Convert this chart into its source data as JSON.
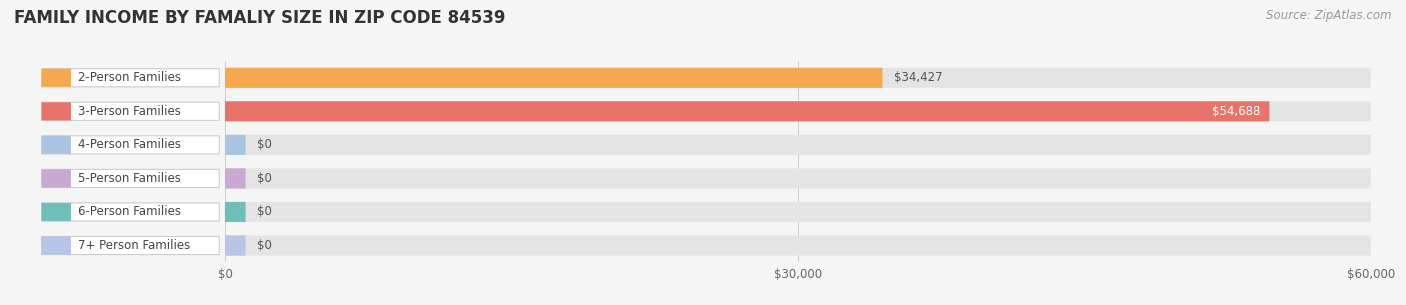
{
  "title": "FAMILY INCOME BY FAMALIY SIZE IN ZIP CODE 84539",
  "source": "Source: ZipAtlas.com",
  "categories": [
    "2-Person Families",
    "3-Person Families",
    "4-Person Families",
    "5-Person Families",
    "6-Person Families",
    "7+ Person Families"
  ],
  "values": [
    34427,
    54688,
    0,
    0,
    0,
    0
  ],
  "bar_colors": [
    "#f5a94e",
    "#e8736a",
    "#a8c4e0",
    "#c9a8d4",
    "#6dbfb8",
    "#b8c4e8"
  ],
  "value_label_colors": [
    "#555555",
    "#ffffff",
    "#555555",
    "#555555",
    "#555555",
    "#555555"
  ],
  "value_labels": [
    "$34,427",
    "$54,688",
    "$0",
    "$0",
    "$0",
    "$0"
  ],
  "xlim": [
    0,
    60000
  ],
  "xticks": [
    0,
    30000,
    60000
  ],
  "xtick_labels": [
    "$0",
    "$30,000",
    "$60,000"
  ],
  "background_color": "#f5f5f5",
  "bar_bg_color": "#e4e4e4",
  "title_fontsize": 12,
  "label_fontsize": 8.5,
  "source_fontsize": 8.5
}
